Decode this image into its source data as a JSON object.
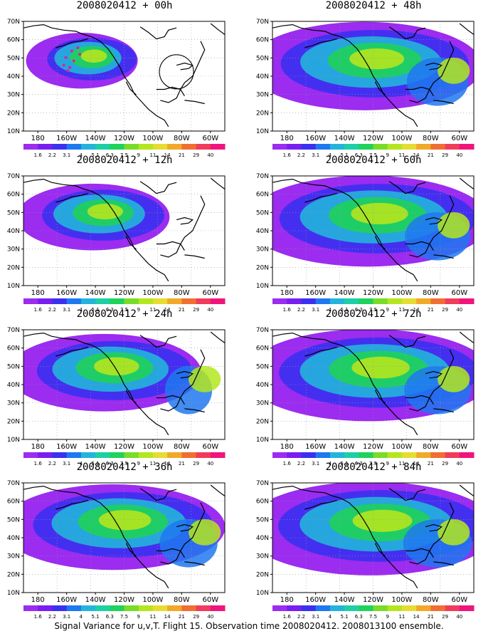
{
  "figure": {
    "caption": "Signal Variance for u,v,T. Flight 15. Observation time 2008020412. 2008013100 ensemble."
  },
  "axes": {
    "lat_labels": [
      "70N",
      "60N",
      "50N",
      "40N",
      "30N",
      "20N",
      "10N"
    ],
    "lon_labels": [
      "180",
      "160W",
      "140W",
      "120W",
      "100W",
      "80W",
      "60W"
    ]
  },
  "colorbar": {
    "labels": [
      "1.6",
      "2.2",
      "3.1",
      "4",
      "5.1",
      "6.3",
      "7.5",
      "9",
      "11",
      "14",
      "21",
      "29",
      "40"
    ],
    "colors": [
      "#9b2cf0",
      "#7a1ef0",
      "#3b30f0",
      "#1e78f0",
      "#23b4dc",
      "#1ecfa5",
      "#1fd25a",
      "#78dc28",
      "#b4e61e",
      "#e6dc32",
      "#f0aa28",
      "#f06e32",
      "#f03c5a",
      "#f0147d"
    ]
  },
  "panels": [
    {
      "title": "2008020412 + 00h",
      "level": 0.25
    },
    {
      "title": "2008020412 + 12h",
      "level": 0.45
    },
    {
      "title": "2008020412 + 24h",
      "level": 0.65
    },
    {
      "title": "2008020412 + 36h",
      "level": 0.8
    },
    {
      "title": "2008020412 + 48h",
      "level": 0.85
    },
    {
      "title": "2008020412 + 60h",
      "level": 0.9
    },
    {
      "title": "2008020412 + 72h",
      "level": 0.92
    },
    {
      "title": "2008020412 + 84h",
      "level": 0.95
    }
  ]
}
